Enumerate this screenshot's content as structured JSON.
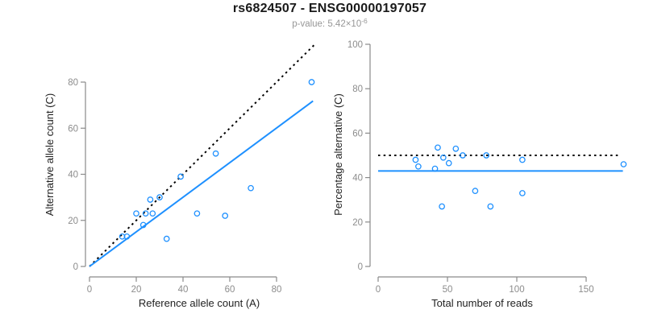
{
  "header": {
    "title": "rs6824507 - ENSG00000197057",
    "subtitle_prefix": "p-value: 5.42×10",
    "subtitle_exponent": "-6"
  },
  "colors": {
    "accent_blue": "#1E90FF",
    "line_black": "#000000",
    "axis_gray": "#8a8a8a",
    "tick_label_gray": "#8c8c8c",
    "axis_title_dark": "#222222",
    "subtitle_gray": "#979797"
  },
  "chart_data": [
    {
      "type": "scatter",
      "panel": "allele-counts",
      "xlabel": "Reference allele count (A)",
      "ylabel": "Alternative allele count (C)",
      "xticks": [
        0,
        20,
        40,
        60,
        80
      ],
      "yticks": [
        0,
        20,
        40,
        60,
        80
      ],
      "xlim": [
        0,
        98
      ],
      "ylim": [
        0,
        97
      ],
      "grid": false,
      "point_style": "open-circle",
      "points": [
        [
          95,
          80
        ],
        [
          54,
          49
        ],
        [
          39,
          39
        ],
        [
          69,
          34
        ],
        [
          30,
          30
        ],
        [
          26,
          29
        ],
        [
          20,
          23
        ],
        [
          24,
          23
        ],
        [
          27,
          23
        ],
        [
          46,
          23
        ],
        [
          58,
          22
        ],
        [
          23,
          18
        ],
        [
          14,
          13
        ],
        [
          16,
          13
        ],
        [
          33,
          12
        ]
      ],
      "lines": [
        {
          "name": "identity-line",
          "style": "dotted",
          "color": "#000000",
          "from": [
            0,
            0
          ],
          "to": [
            96.5,
            96.5
          ]
        },
        {
          "name": "fit-line",
          "style": "solid",
          "color": "#1E90FF",
          "from": [
            0,
            0
          ],
          "to": [
            95.6,
            71.8
          ]
        }
      ]
    },
    {
      "type": "scatter",
      "panel": "percentage-vs-reads",
      "xlabel": "Total number of reads",
      "ylabel": "Percentage alternative (C)",
      "xticks": [
        0,
        50,
        100,
        150
      ],
      "yticks": [
        0,
        20,
        40,
        60,
        80,
        100
      ],
      "xlim": [
        0,
        180
      ],
      "ylim": [
        0,
        100
      ],
      "grid": false,
      "point_style": "open-circle",
      "points": [
        [
          43,
          53.5
        ],
        [
          56,
          53
        ],
        [
          61,
          50
        ],
        [
          78,
          50
        ],
        [
          27,
          48
        ],
        [
          47,
          49
        ],
        [
          51,
          46.5
        ],
        [
          104,
          48
        ],
        [
          29,
          45
        ],
        [
          41,
          44
        ],
        [
          177,
          46
        ],
        [
          70,
          34
        ],
        [
          104,
          33
        ],
        [
          46,
          27
        ],
        [
          81,
          27
        ]
      ],
      "lines": [
        {
          "name": "fifty-percent-line",
          "style": "dotted",
          "color": "#000000",
          "from": [
            0,
            50
          ],
          "to": [
            174,
            50
          ]
        },
        {
          "name": "mean-percentage-line",
          "style": "solid",
          "color": "#1E90FF",
          "from": [
            0,
            43
          ],
          "to": [
            176.5,
            43
          ]
        }
      ]
    }
  ]
}
